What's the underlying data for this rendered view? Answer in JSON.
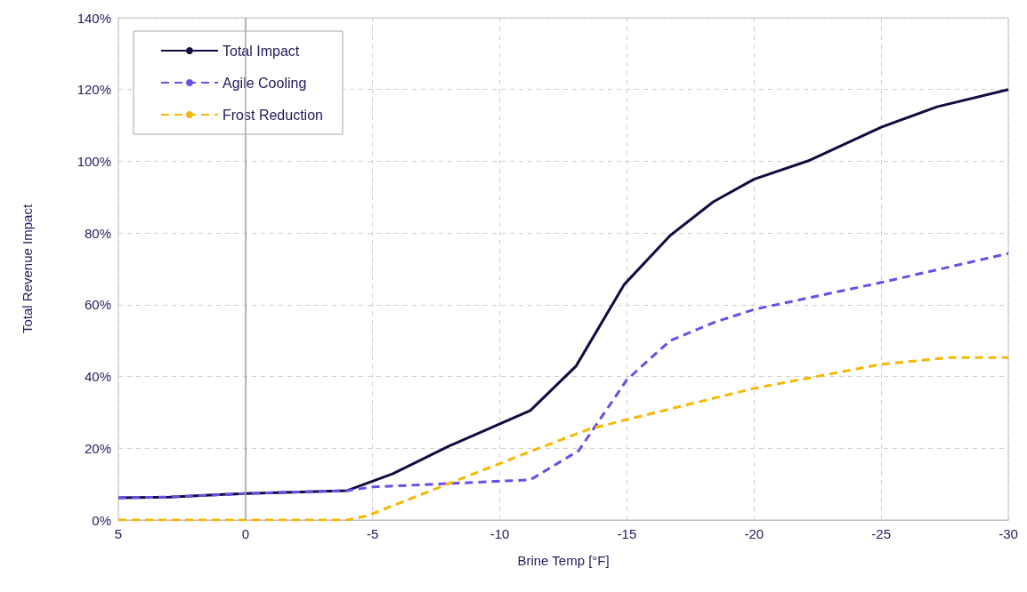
{
  "chart_data": {
    "type": "line",
    "xlabel": "Brine Temp [°F]",
    "ylabel": "Total Revenue Impact",
    "xlim": [
      5,
      -30
    ],
    "xticks": [
      5,
      0,
      -5,
      -10,
      -15,
      -20,
      -25,
      -30
    ],
    "ylim": [
      0,
      140
    ],
    "yticks": [
      {
        "value": 0,
        "label": "0%"
      },
      {
        "value": 20,
        "label": "20%"
      },
      {
        "value": 40,
        "label": "40%"
      },
      {
        "value": 60,
        "label": "60%"
      },
      {
        "value": 80,
        "label": "80%"
      },
      {
        "value": 100,
        "label": "100%"
      },
      {
        "value": 120,
        "label": "120%"
      },
      {
        "value": 140,
        "label": "140%"
      }
    ],
    "grid": true,
    "legend": "top left",
    "marker": "none",
    "ref_lines": [
      {
        "axis": "x",
        "value": 0,
        "color": "#a6a6a6",
        "line_style": "solid"
      }
    ],
    "series": [
      {
        "name": "Total Impact",
        "color": "#100c40",
        "line_style": "solid",
        "x": [
          5,
          3,
          0,
          -4,
          -5.8,
          -8,
          -10,
          -11.2,
          -13,
          -14.9,
          -16.7,
          -18.4,
          -20,
          -22.2,
          -25,
          -27.2,
          -30
        ],
        "values": [
          6.2,
          6.4,
          7.4,
          8.2,
          12.9,
          20.6,
          26.8,
          30.5,
          42.9,
          65.7,
          79.3,
          88.7,
          95,
          100.3,
          109.5,
          115.2,
          120
        ]
      },
      {
        "name": "Agile Cooling",
        "color": "#6b4de6",
        "line_style": "dashed",
        "x": [
          5,
          3,
          0,
          -4,
          -5,
          -8.1,
          -11.2,
          -13.1,
          -15,
          -16.7,
          -18.4,
          -20,
          -25,
          -30
        ],
        "values": [
          6.2,
          6.4,
          7.4,
          8.2,
          9.2,
          10.2,
          11.2,
          19.3,
          39.1,
          50,
          55,
          58.7,
          66.2,
          74.3
        ]
      },
      {
        "name": "Frost Reduction",
        "color": "#f5b800",
        "line_style": "dashed",
        "x": [
          5,
          0,
          -4,
          -4.8,
          -7.2,
          -7.9,
          -11.2,
          -13.5,
          -15,
          -20,
          -25,
          -27.7,
          -30
        ],
        "values": [
          0,
          0,
          0,
          1.2,
          7.9,
          9.9,
          19.1,
          25.3,
          28,
          36.7,
          43.4,
          45.3,
          45.3
        ]
      }
    ]
  }
}
